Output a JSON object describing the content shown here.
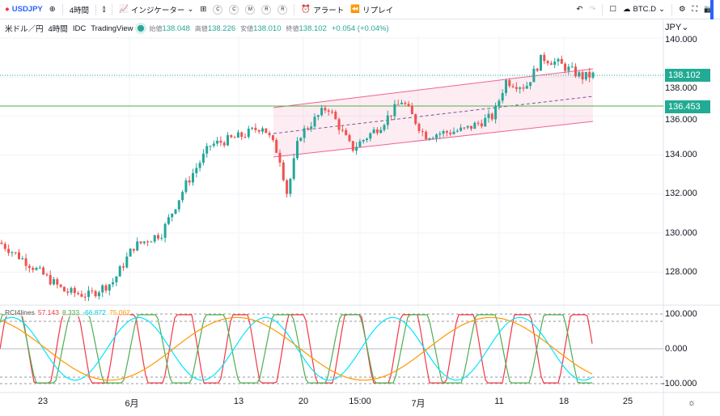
{
  "toolbar": {
    "symbol": "USDJPY",
    "interval": "4時間",
    "indicators": "インジケーター",
    "alert": "アラート",
    "replay": "リプレイ",
    "compare_symbol": "BTC.D"
  },
  "legend": {
    "title": "米ドル／円",
    "interval": "4時間",
    "source": "IDC",
    "provider": "TradingView",
    "open_label": "始値",
    "open": "138.048",
    "high_label": "高値",
    "high": "138.226",
    "low_label": "安値",
    "low": "138.010",
    "close_label": "終値",
    "close": "138.102",
    "change": "+0.054 (+0.04%)"
  },
  "price_axis": {
    "currency": "JPY",
    "labels": [
      "140.000",
      "138.000",
      "136.000",
      "134.000",
      "132.000",
      "130.000",
      "128.000"
    ],
    "last_price": "138.102",
    "hline_price": "136.453"
  },
  "rci": {
    "name": "RCI4lines",
    "v1": "57.143",
    "v2": "8.333",
    "v3": "-66.872",
    "v4": "75.062",
    "labels": [
      "100.000",
      "0.000",
      "-100.000"
    ],
    "colors": [
      "#f23645",
      "#4caf50",
      "#00e5ff",
      "#ff9800"
    ]
  },
  "time_axis": [
    "23",
    "6月",
    "13",
    "20",
    "15:00",
    "7月",
    "11",
    "18",
    "25"
  ],
  "colors": {
    "up": "#26a69a",
    "down": "#ef5350",
    "channel": "#f06292",
    "hline": "#4caf50"
  },
  "chart_data": {
    "type": "candlestick",
    "ylim": [
      126.5,
      140.3
    ],
    "path": [
      [
        0,
        129.5
      ],
      [
        30,
        128.6
      ],
      [
        80,
        127.0
      ],
      [
        110,
        126.8
      ],
      [
        140,
        127.5
      ],
      [
        165,
        129.3
      ],
      [
        200,
        130.0
      ],
      [
        230,
        132.5
      ],
      [
        260,
        134.5
      ],
      [
        300,
        135.0
      ],
      [
        325,
        135.5
      ],
      [
        345,
        134.0
      ],
      [
        355,
        132.0
      ],
      [
        370,
        135.0
      ],
      [
        405,
        136.5
      ],
      [
        435,
        134.3
      ],
      [
        470,
        135.5
      ],
      [
        497,
        136.8
      ],
      [
        525,
        135.0
      ],
      [
        575,
        135.3
      ],
      [
        610,
        136.0
      ],
      [
        625,
        137.8
      ],
      [
        650,
        137.5
      ],
      [
        670,
        139.0
      ],
      [
        690,
        138.7
      ],
      [
        720,
        138.0
      ],
      [
        733,
        138.1
      ]
    ]
  }
}
